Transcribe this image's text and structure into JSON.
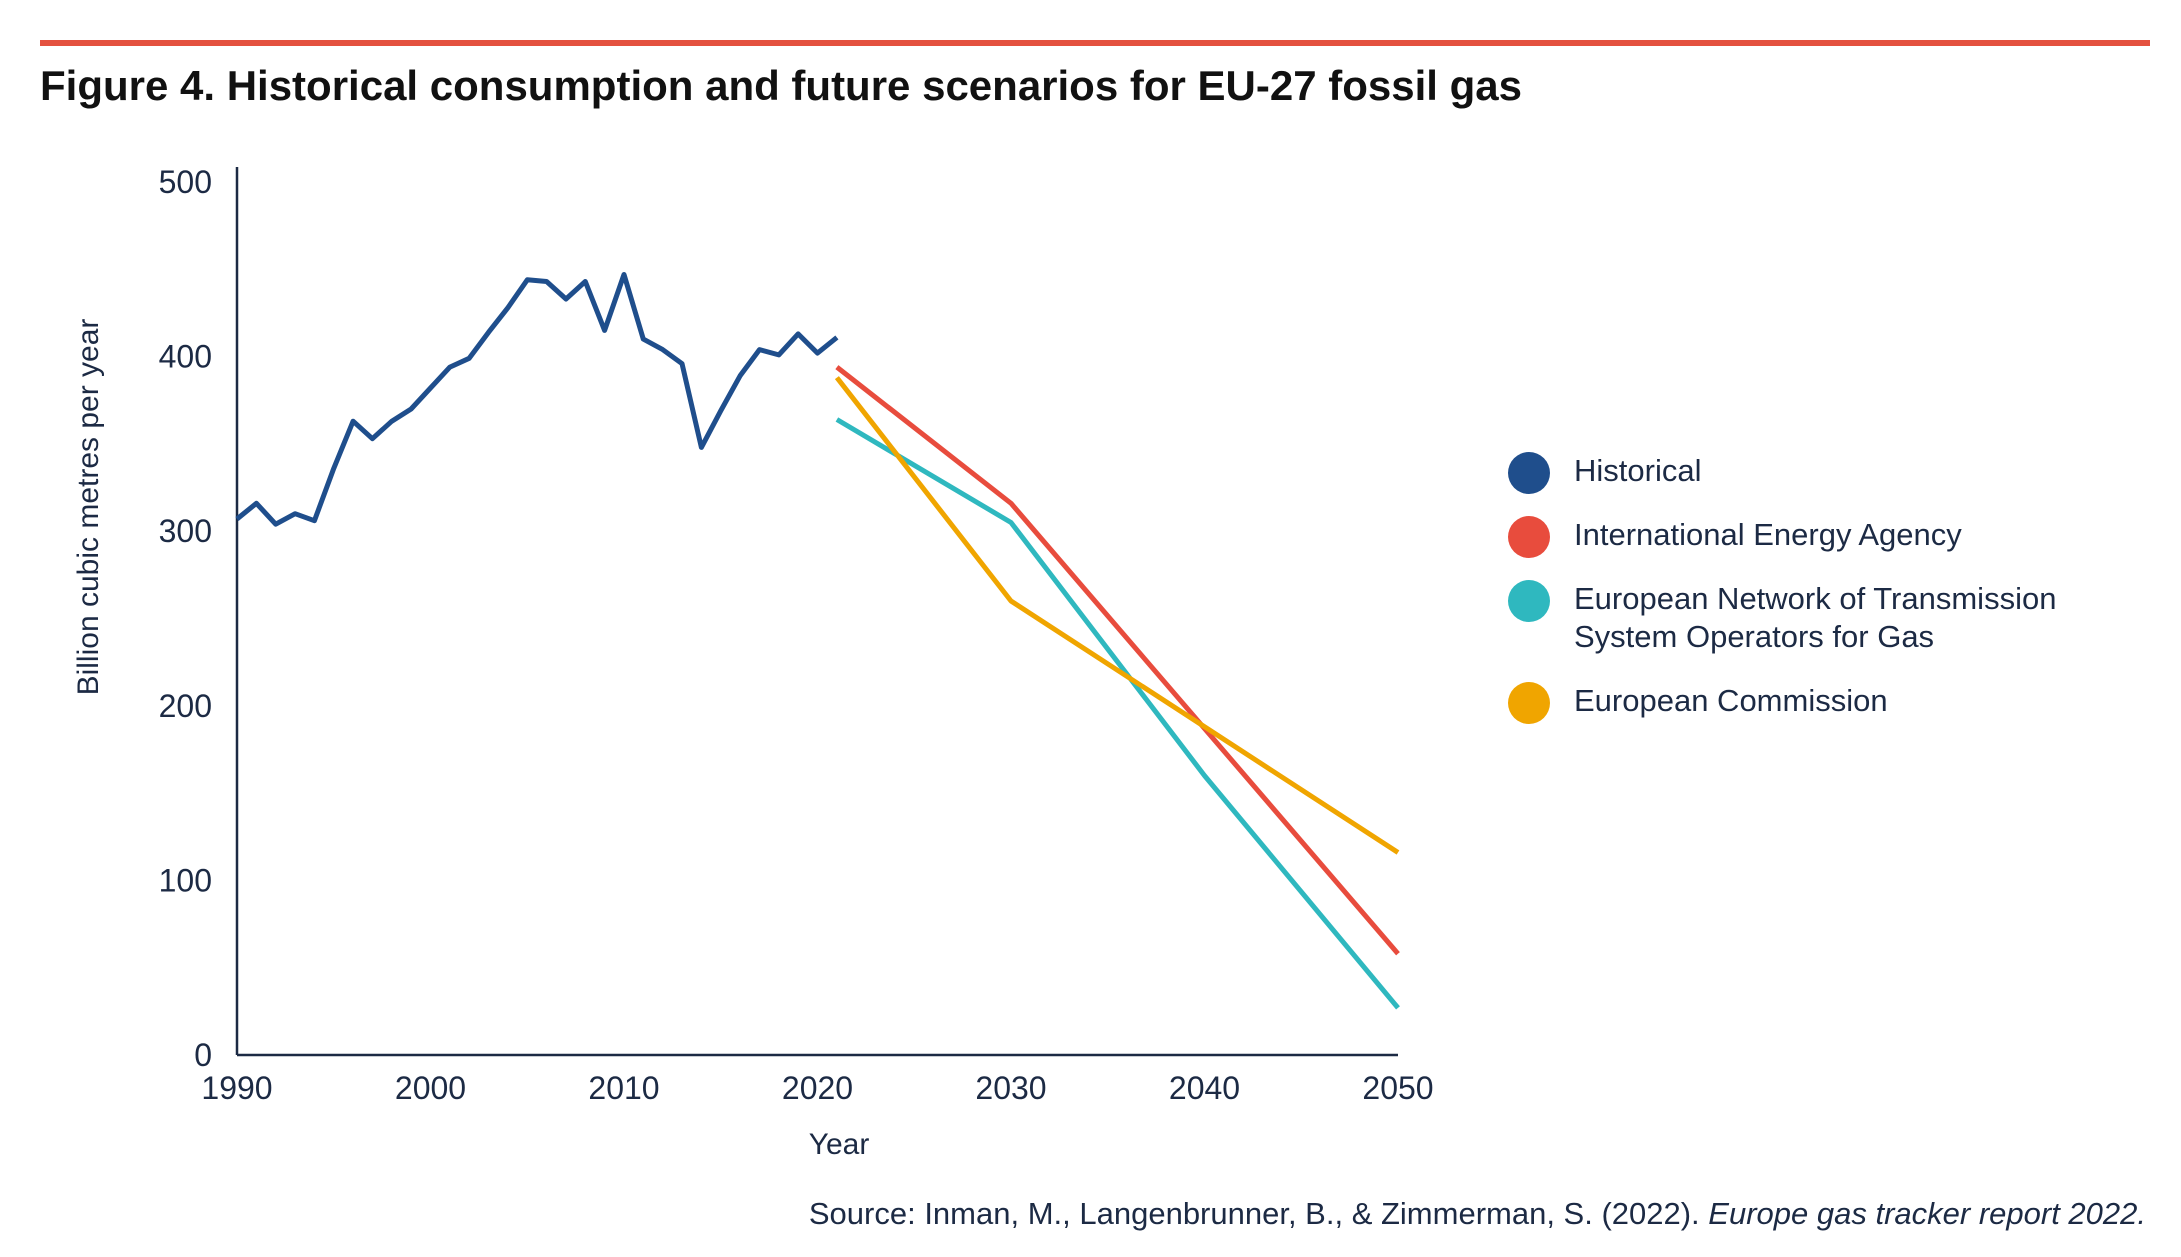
{
  "figure": {
    "title": "Figure 4. Historical consumption and future scenarios for EU-27 fossil gas",
    "rule_color": "#e4513f",
    "source_prefix": "Source: Inman, M., Langenbrunner, B., & Zimmerman, S. (2022). ",
    "source_title": "Europe gas tracker report 2022."
  },
  "chart_data": {
    "type": "line",
    "title": "Figure 4. Historical consumption and future scenarios for EU-27 fossil gas",
    "xlabel": "Year",
    "ylabel": "Billion cubic metres per year",
    "xlim": [
      1990,
      2050
    ],
    "ylim": [
      0,
      500
    ],
    "x_ticks": [
      "1990",
      "2000",
      "2010",
      "2020",
      "2030",
      "2040",
      "2050"
    ],
    "y_ticks": [
      "0",
      "100",
      "200",
      "300",
      "400",
      "500"
    ],
    "grid": false,
    "legend_position": "right",
    "series": [
      {
        "name": "Historical",
        "color": "#1f4e8c",
        "x": [
          1990,
          1991,
          1992,
          1993,
          1994,
          1995,
          1996,
          1997,
          1998,
          1999,
          2000,
          2001,
          2002,
          2003,
          2004,
          2005,
          2006,
          2007,
          2008,
          2009,
          2010,
          2011,
          2012,
          2013,
          2014,
          2015,
          2016,
          2017,
          2018,
          2019,
          2020,
          2021
        ],
        "y": [
          307,
          316,
          304,
          310,
          306,
          336,
          363,
          353,
          363,
          370,
          382,
          394,
          399,
          414,
          428,
          444,
          443,
          433,
          443,
          415,
          447,
          410,
          404,
          396,
          348,
          369,
          389,
          404,
          401,
          413,
          402,
          411
        ]
      },
      {
        "name": "International Energy Agency",
        "color": "#e84c3d",
        "x": [
          2021,
          2030,
          2050
        ],
        "y": [
          394,
          316,
          58
        ]
      },
      {
        "name": "European Network of Transmission System Operators for Gas",
        "color": "#2fb8bf",
        "x": [
          2021,
          2030,
          2040,
          2050
        ],
        "y": [
          364,
          305,
          160,
          27
        ]
      },
      {
        "name": "European Commission",
        "color": "#f0a500",
        "x": [
          2021,
          2030,
          2050
        ],
        "y": [
          388,
          260,
          116
        ]
      }
    ]
  }
}
